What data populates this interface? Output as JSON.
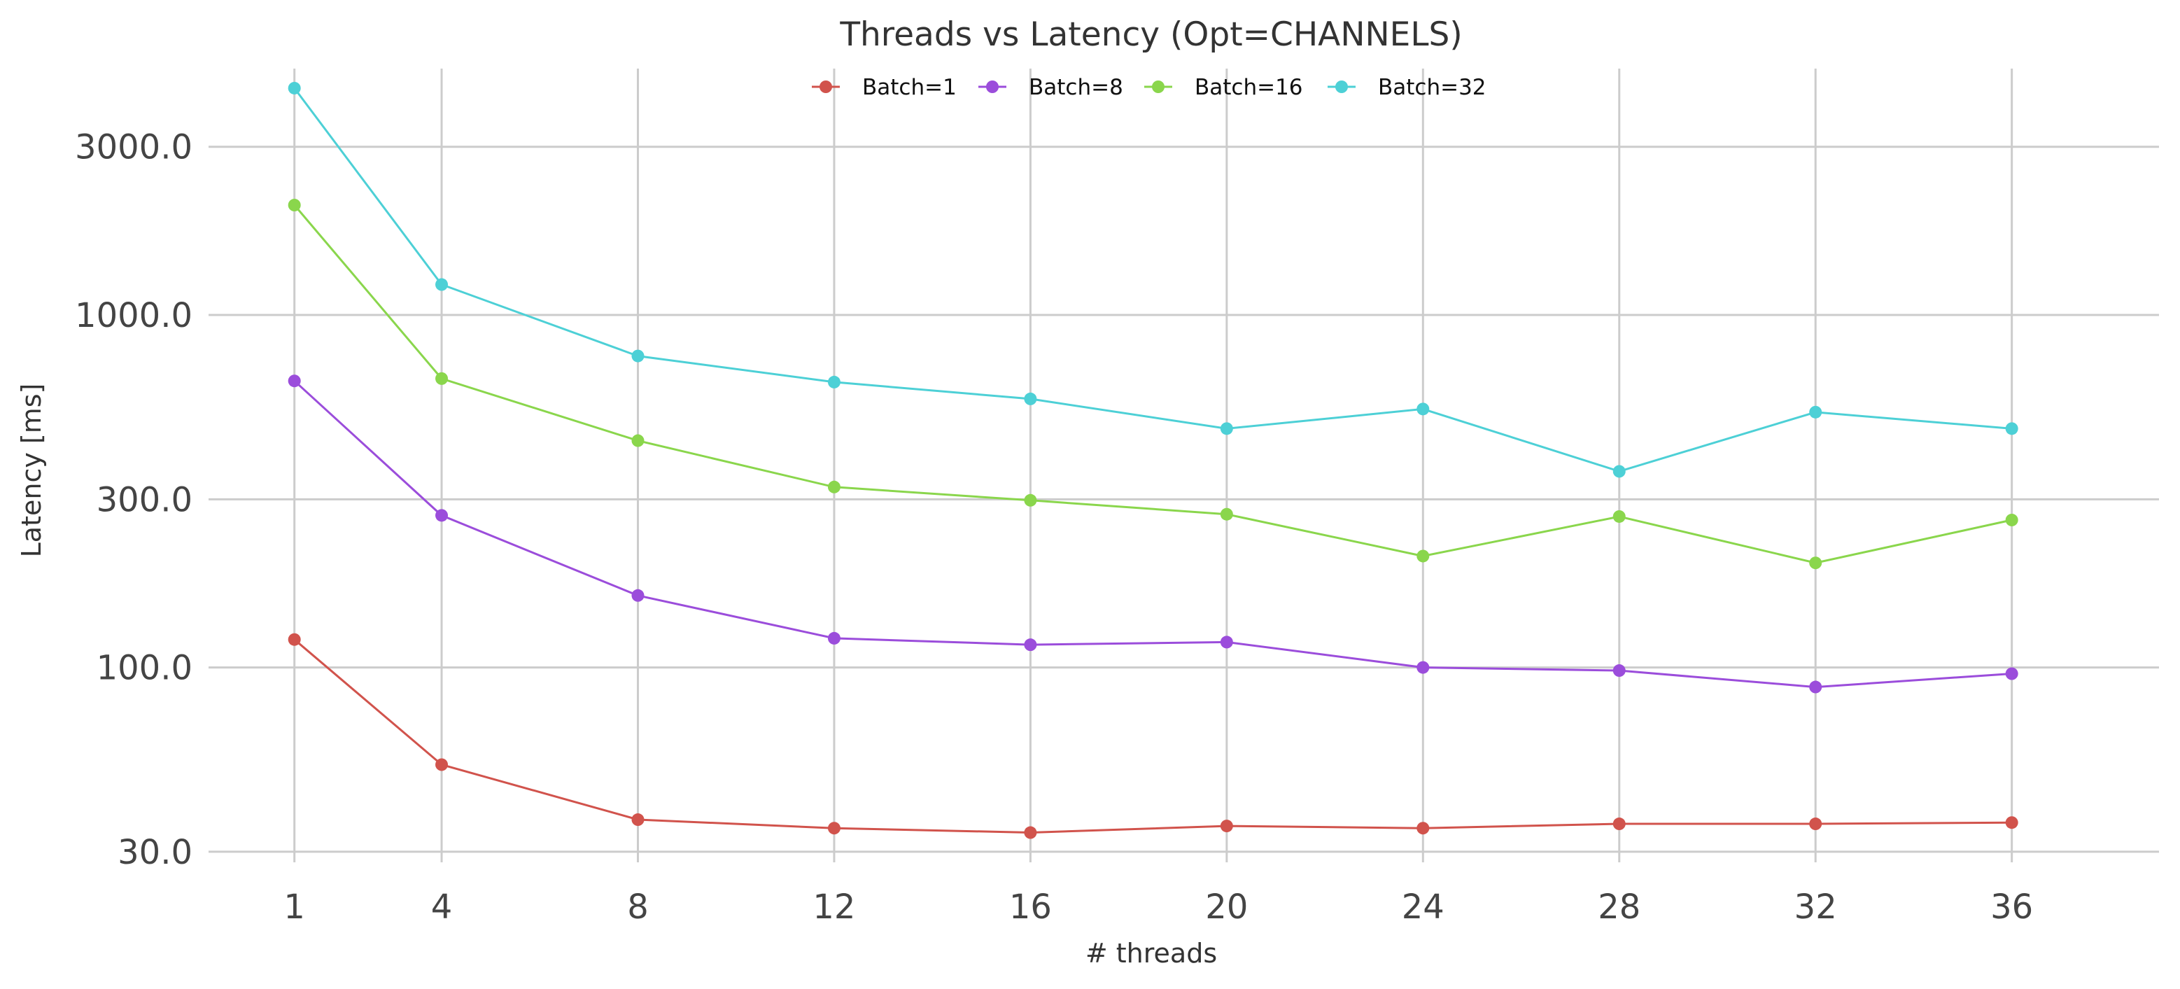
{
  "chart_data": {
    "type": "line",
    "title": "Threads vs Latency (Opt=CHANNELS)",
    "xlabel": "# threads",
    "ylabel": "Latency [ms]",
    "x": [
      1,
      4,
      8,
      12,
      16,
      20,
      24,
      28,
      32,
      36
    ],
    "x_ticks": [
      "1",
      "4",
      "8",
      "12",
      "16",
      "20",
      "24",
      "28",
      "32",
      "36"
    ],
    "xlim": [
      -0.75,
      39
    ],
    "y_scale": "log",
    "ylim": [
      28,
      5000
    ],
    "y_ticks": [
      30,
      100,
      300,
      1000,
      3000
    ],
    "y_tick_labels": [
      "30.0",
      "100.0",
      "300.0",
      "1000.0",
      "3000.0"
    ],
    "grid": true,
    "legend_position": "top-center",
    "series": [
      {
        "name": "Batch=1",
        "color": "#d1534c",
        "values": [
          120,
          53,
          37,
          35,
          34,
          35.5,
          35,
          36,
          36,
          36.3
        ]
      },
      {
        "name": "Batch=8",
        "color": "#9b4ddb",
        "values": [
          650,
          270,
          160,
          121,
          116,
          118,
          100,
          98,
          88,
          96
        ]
      },
      {
        "name": "Batch=16",
        "color": "#8ad64c",
        "values": [
          2050,
          660,
          440,
          325,
          298,
          272,
          207,
          268,
          198,
          262
        ]
      },
      {
        "name": "Batch=32",
        "color": "#4dd0d6",
        "values": [
          4400,
          1220,
          765,
          645,
          578,
          476,
          541,
          360,
          530,
          476
        ]
      }
    ]
  }
}
